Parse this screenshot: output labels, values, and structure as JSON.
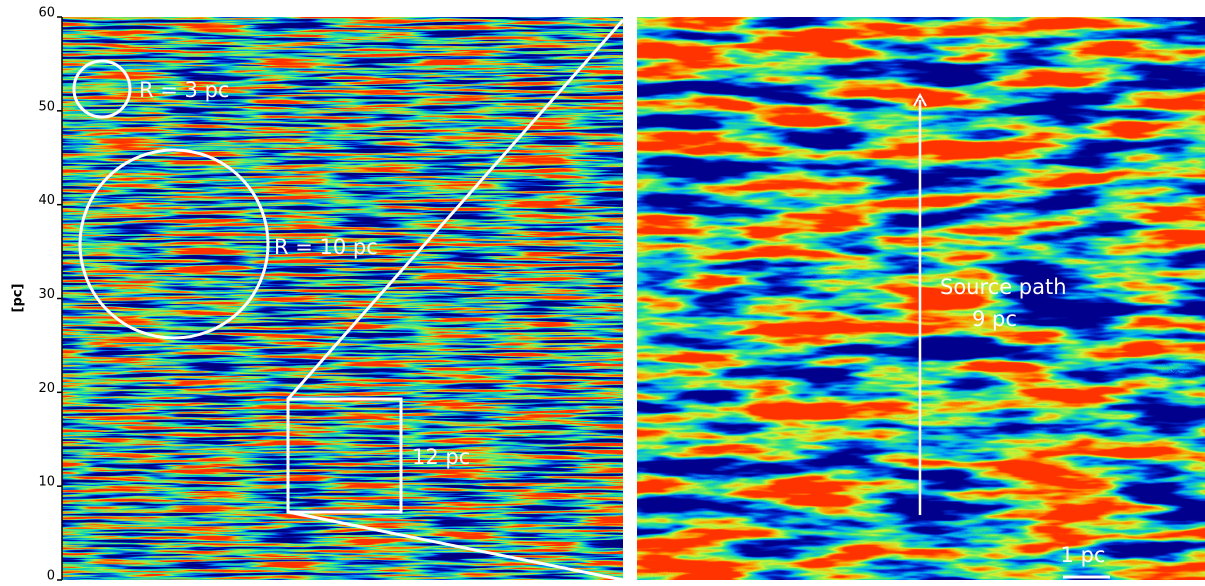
{
  "chart_data": {
    "type": "image",
    "ylabel": "[pc]",
    "ylim": [
      0,
      60
    ],
    "yticks": [
      0,
      10,
      20,
      30,
      40,
      50,
      60
    ],
    "annotations": {
      "small_circle": "R = 3 pc",
      "large_circle": "R = 10 pc",
      "box": "12 pc",
      "path": "Source path",
      "path_length": "9 pc",
      "scale_bar": "1 pc"
    }
  }
}
